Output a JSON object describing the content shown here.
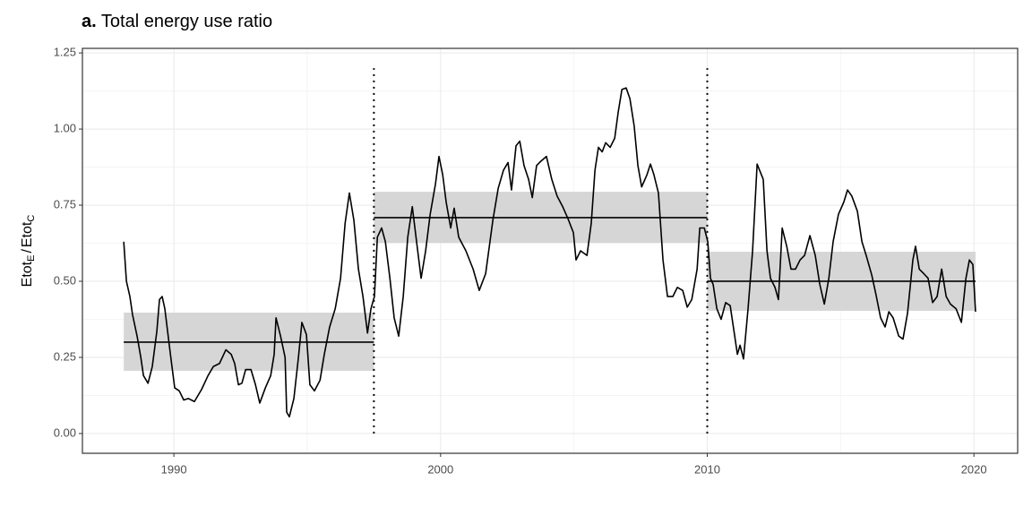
{
  "chart_data": {
    "type": "line",
    "panel_label": "a.",
    "title": "Total energy use ratio",
    "y_label": [
      "Etot",
      "E",
      "/",
      "Etot",
      "C"
    ],
    "color": "#000000",
    "band_color": "#d6d6d6",
    "grid": true,
    "xlim": [
      1986.57,
      2021.64
    ],
    "ylim": [
      -0.065,
      1.265
    ],
    "xticks": [
      1990,
      2000,
      2010,
      2020
    ],
    "xminor": [
      1995,
      2005,
      2015
    ],
    "yticks": [
      {
        "value": 0,
        "label": "0.00"
      },
      {
        "value": 0.25,
        "label": "0.25"
      },
      {
        "value": 0.5,
        "label": "0.50"
      },
      {
        "value": 0.75,
        "label": "0.75"
      },
      {
        "value": 1,
        "label": "1.00"
      },
      {
        "value": 1.25,
        "label": "1.25"
      }
    ],
    "yminor": [
      0.125,
      0.375,
      0.625,
      0.875,
      1.125
    ],
    "regimes": [
      {
        "start": 1988.12,
        "end": 1997.5,
        "mean": 0.3,
        "lower": 0.206,
        "upper": 0.397
      },
      {
        "start": 1997.5,
        "end": 2010.0,
        "mean": 0.709,
        "lower": 0.626,
        "upper": 0.794
      },
      {
        "start": 2010.0,
        "end": 2020.06,
        "mean": 0.5,
        "lower": 0.403,
        "upper": 0.597
      }
    ],
    "breaks": [
      {
        "x": 1997.5,
        "ymin": 0,
        "ymax": 1.2
      },
      {
        "x": 2010.0,
        "ymin": 0,
        "ymax": 1.2
      }
    ],
    "x": [
      1988.12,
      1988.22,
      1988.35,
      1988.45,
      1988.62,
      1988.76,
      1988.86,
      1989.03,
      1989.19,
      1989.36,
      1989.46,
      1989.56,
      1989.66,
      1989.87,
      1990.03,
      1990.2,
      1990.37,
      1990.54,
      1990.77,
      1991.04,
      1991.28,
      1991.48,
      1991.71,
      1991.95,
      1992.15,
      1992.28,
      1992.42,
      1992.55,
      1992.69,
      1992.89,
      1993.06,
      1993.22,
      1993.43,
      1993.63,
      1993.76,
      1993.83,
      1994.0,
      1994.17,
      1994.23,
      1994.33,
      1994.5,
      1994.67,
      1994.8,
      1994.97,
      1995.1,
      1995.27,
      1995.48,
      1995.64,
      1995.84,
      1996.05,
      1996.25,
      1996.42,
      1996.58,
      1996.75,
      1996.92,
      1997.09,
      1997.26,
      1997.39,
      1997.52,
      1997.63,
      1997.79,
      1997.93,
      1998.1,
      1998.26,
      1998.43,
      1998.6,
      1998.77,
      1998.94,
      1999.1,
      1999.27,
      1999.44,
      1999.61,
      1999.81,
      1999.94,
      2000.08,
      2000.21,
      2000.38,
      2000.51,
      2000.68,
      2000.95,
      2001.22,
      2001.45,
      2001.69,
      2001.96,
      2002.16,
      2002.36,
      2002.53,
      2002.66,
      2002.83,
      2002.97,
      2003.13,
      2003.3,
      2003.44,
      2003.6,
      2003.77,
      2003.97,
      2004.17,
      2004.37,
      2004.58,
      2004.78,
      2004.98,
      2005.08,
      2005.25,
      2005.49,
      2005.65,
      2005.79,
      2005.92,
      2006.06,
      2006.19,
      2006.36,
      2006.53,
      2006.66,
      2006.8,
      2006.96,
      2007.1,
      2007.26,
      2007.4,
      2007.54,
      2007.74,
      2007.87,
      2008.0,
      2008.17,
      2008.34,
      2008.51,
      2008.71,
      2008.88,
      2009.08,
      2009.25,
      2009.42,
      2009.62,
      2009.72,
      2009.89,
      2010.02,
      2010.12,
      2010.22,
      2010.36,
      2010.52,
      2010.69,
      2010.86,
      2011.03,
      2011.13,
      2011.23,
      2011.36,
      2011.53,
      2011.7,
      2011.87,
      2012.1,
      2012.24,
      2012.37,
      2012.54,
      2012.67,
      2012.81,
      2012.98,
      2013.14,
      2013.31,
      2013.48,
      2013.65,
      2013.85,
      2014.05,
      2014.22,
      2014.39,
      2014.56,
      2014.72,
      2014.92,
      2015.12,
      2015.26,
      2015.42,
      2015.63,
      2015.8,
      2015.96,
      2016.17,
      2016.33,
      2016.5,
      2016.67,
      2016.81,
      2016.97,
      2017.18,
      2017.34,
      2017.51,
      2017.71,
      2017.81,
      2017.95,
      2018.12,
      2018.28,
      2018.45,
      2018.62,
      2018.79,
      2018.96,
      2019.12,
      2019.33,
      2019.53,
      2019.7,
      2019.83,
      2019.96,
      2020.06
    ],
    "values": [
      0.63,
      0.5,
      0.45,
      0.39,
      0.32,
      0.25,
      0.19,
      0.165,
      0.22,
      0.335,
      0.44,
      0.45,
      0.41,
      0.26,
      0.15,
      0.14,
      0.11,
      0.115,
      0.105,
      0.145,
      0.19,
      0.22,
      0.23,
      0.275,
      0.26,
      0.23,
      0.16,
      0.165,
      0.21,
      0.21,
      0.16,
      0.1,
      0.15,
      0.19,
      0.26,
      0.38,
      0.32,
      0.25,
      0.07,
      0.055,
      0.115,
      0.25,
      0.365,
      0.325,
      0.16,
      0.14,
      0.175,
      0.26,
      0.35,
      0.41,
      0.51,
      0.69,
      0.79,
      0.7,
      0.54,
      0.45,
      0.33,
      0.41,
      0.45,
      0.645,
      0.675,
      0.63,
      0.51,
      0.38,
      0.32,
      0.45,
      0.645,
      0.745,
      0.63,
      0.51,
      0.6,
      0.72,
      0.82,
      0.91,
      0.85,
      0.76,
      0.675,
      0.74,
      0.645,
      0.6,
      0.54,
      0.47,
      0.525,
      0.7,
      0.805,
      0.865,
      0.89,
      0.8,
      0.945,
      0.96,
      0.88,
      0.835,
      0.775,
      0.88,
      0.895,
      0.91,
      0.835,
      0.78,
      0.745,
      0.705,
      0.66,
      0.57,
      0.6,
      0.585,
      0.69,
      0.865,
      0.94,
      0.925,
      0.955,
      0.94,
      0.97,
      1.055,
      1.13,
      1.135,
      1.1,
      1.01,
      0.88,
      0.81,
      0.85,
      0.885,
      0.85,
      0.79,
      0.57,
      0.45,
      0.45,
      0.48,
      0.47,
      0.415,
      0.44,
      0.54,
      0.675,
      0.675,
      0.63,
      0.51,
      0.49,
      0.41,
      0.375,
      0.43,
      0.42,
      0.32,
      0.26,
      0.29,
      0.245,
      0.41,
      0.6,
      0.885,
      0.835,
      0.6,
      0.51,
      0.48,
      0.44,
      0.675,
      0.615,
      0.54,
      0.54,
      0.57,
      0.585,
      0.65,
      0.585,
      0.49,
      0.425,
      0.51,
      0.63,
      0.72,
      0.76,
      0.8,
      0.78,
      0.73,
      0.63,
      0.585,
      0.52,
      0.455,
      0.38,
      0.35,
      0.4,
      0.38,
      0.32,
      0.31,
      0.395,
      0.57,
      0.615,
      0.54,
      0.525,
      0.51,
      0.43,
      0.45,
      0.54,
      0.45,
      0.425,
      0.41,
      0.365,
      0.51,
      0.57,
      0.555,
      0.4
    ]
  }
}
